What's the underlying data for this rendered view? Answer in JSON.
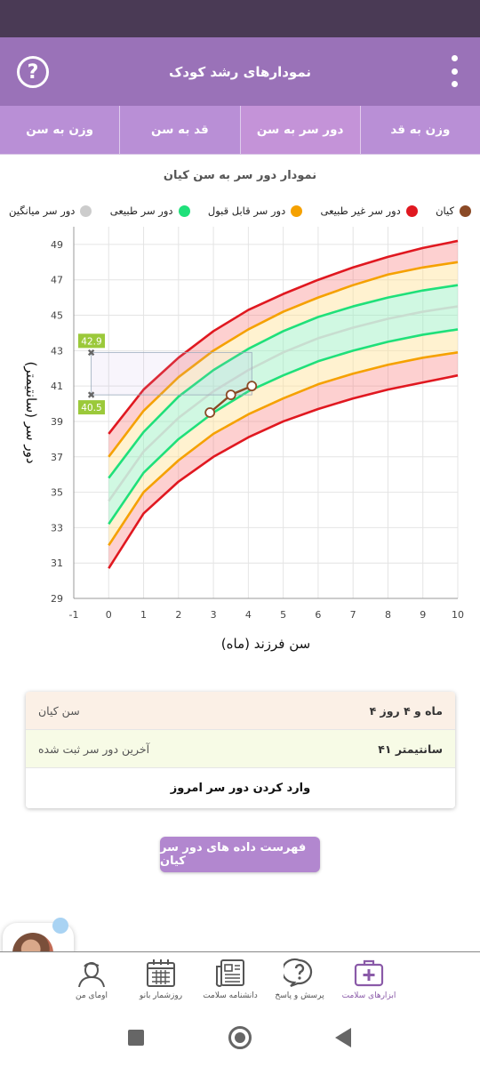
{
  "app": {
    "title": "نمودارهای رشد کودک",
    "help_label": "?"
  },
  "tabs": [
    {
      "label": "وزن به سن",
      "active": false
    },
    {
      "label": "قد به سن",
      "active": false
    },
    {
      "label": "دور سر به سن",
      "active": true
    },
    {
      "label": "وزن به قد",
      "active": false
    }
  ],
  "legend": [
    {
      "label": "کیان",
      "color": "#8b4a26"
    },
    {
      "label": "دور سر غیر طبیعی",
      "color": "#e01820"
    },
    {
      "label": "دور سر قابل قبول",
      "color": "#f5a100"
    },
    {
      "label": "دور سر طبیعی",
      "color": "#1fe07a"
    },
    {
      "label": "دور سر میانگین",
      "color": "#cccccc"
    }
  ],
  "chart_data": {
    "type": "line",
    "title": "نمودار دور سر به سن کیان",
    "xlabel": "سن فرزند (ماه)",
    "ylabel": "دور سر (سانتیمتر)",
    "xlim": [
      -1,
      10
    ],
    "ylim": [
      29,
      50
    ],
    "x_ticks": [
      "-1",
      "0",
      "1",
      "2",
      "3",
      "4",
      "5",
      "6",
      "7",
      "8",
      "9",
      "10"
    ],
    "y_ticks": [
      "29",
      "31",
      "33",
      "35",
      "37",
      "39",
      "41",
      "43",
      "45",
      "47",
      "49"
    ],
    "x": [
      0,
      1,
      2,
      3,
      4,
      5,
      6,
      7,
      8,
      9,
      10
    ],
    "series": [
      {
        "name": "دور سر غیر طبیعی",
        "color": "#e01820",
        "values": [
          38.3,
          40.8,
          42.6,
          44.1,
          45.3,
          46.2,
          47.0,
          47.7,
          48.3,
          48.8,
          49.2
        ]
      },
      {
        "name": "دور سر قابل قبول",
        "color": "#f5a100",
        "values": [
          37.0,
          39.6,
          41.5,
          43.0,
          44.2,
          45.2,
          46.0,
          46.7,
          47.3,
          47.7,
          48.0
        ]
      },
      {
        "name": "دور سر طبیعی",
        "color": "#1fe07a",
        "values": [
          35.8,
          38.4,
          40.4,
          41.9,
          43.1,
          44.1,
          44.9,
          45.5,
          46.0,
          46.4,
          46.7
        ]
      },
      {
        "name": "دور سر میانگین",
        "color": "#c8ddd0",
        "values": [
          34.5,
          37.3,
          39.2,
          40.7,
          41.9,
          42.9,
          43.7,
          44.3,
          44.8,
          45.2,
          45.5
        ]
      },
      {
        "name": "دور سر طبیعی",
        "color": "#1fe07a",
        "values": [
          33.2,
          36.1,
          38.0,
          39.5,
          40.7,
          41.6,
          42.4,
          43.0,
          43.5,
          43.9,
          44.2
        ]
      },
      {
        "name": "دور سر قابل قبول",
        "color": "#f5a100",
        "values": [
          32.0,
          35.0,
          36.8,
          38.3,
          39.4,
          40.3,
          41.1,
          41.7,
          42.2,
          42.6,
          42.9
        ]
      },
      {
        "name": "دور سر غیر طبیعی",
        "color": "#e01820",
        "values": [
          30.7,
          33.8,
          35.6,
          37.0,
          38.1,
          39.0,
          39.7,
          40.3,
          40.8,
          41.2,
          41.6
        ]
      }
    ],
    "child": {
      "name": "کیان",
      "color": "#8b4a26",
      "points": [
        [
          2.9,
          39.5
        ],
        [
          3.5,
          40.5
        ],
        [
          4.1,
          41.0
        ]
      ]
    },
    "selection": {
      "upper_label": "42.9",
      "lower_label": "40.5",
      "upper": 42.9,
      "lower": 40.5,
      "x_end": 4.1
    },
    "grid": true
  },
  "info": {
    "age_label": "سن کیان",
    "age_value": "۴ ماه و ۴ روز",
    "last_label": "آخرین دور سر ثبت شده",
    "last_value": "۴۱ سانتیمتر",
    "enter_label": "وارد کردن دور سر امروز"
  },
  "list_button": "فهرست داده های دور سر کیان",
  "bottom_nav": [
    {
      "label": "ابزارهای سلامت",
      "icon": "medical-kit-icon",
      "active": true
    },
    {
      "label": "پرسش و پاسخ",
      "icon": "question-bubble-icon",
      "active": false
    },
    {
      "label": "دانشنامه سلامت",
      "icon": "newspaper-icon",
      "active": false
    },
    {
      "label": "روزشمار بانو",
      "icon": "calendar-icon",
      "active": false
    },
    {
      "label": "اومای من",
      "icon": "user-icon",
      "active": false
    }
  ]
}
